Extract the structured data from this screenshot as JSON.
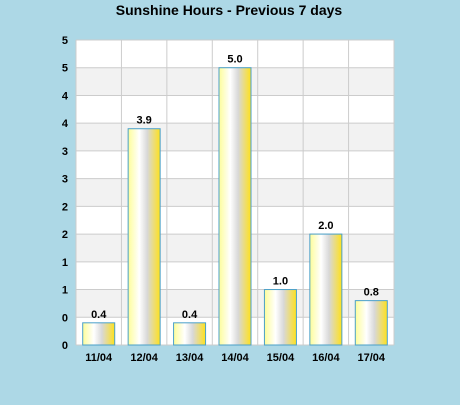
{
  "chart_data": {
    "type": "bar",
    "title": "Sunshine Hours - Previous 7 days",
    "xlabel": "",
    "ylabel": "",
    "categories": [
      "11/04",
      "12/04",
      "13/04",
      "14/04",
      "15/04",
      "16/04",
      "17/04"
    ],
    "values": [
      0.4,
      3.9,
      0.4,
      5.0,
      1.0,
      2.0,
      0.8
    ],
    "value_labels": [
      "0.4",
      "3.9",
      "0.4",
      "5.0",
      "1.0",
      "2.0",
      "0.8"
    ],
    "y_tick_labels": [
      "0",
      "0",
      "1",
      "1",
      "2",
      "2",
      "3",
      "3",
      "4",
      "4",
      "5",
      "5"
    ],
    "ylim": [
      0,
      5.5
    ],
    "y_tick_step": 0.5,
    "grid": true,
    "legend": "none",
    "colors": {
      "background": "#add8e6",
      "plot_band_light": "#ffffff",
      "plot_band_dark": "#f2f2f2",
      "grid": "#cccccc",
      "bar_stroke": "#4aa0c8",
      "bar_gradient": [
        "#fdfd9a",
        "#ffffff",
        "#d8d8d8",
        "#ffe11c"
      ]
    }
  }
}
